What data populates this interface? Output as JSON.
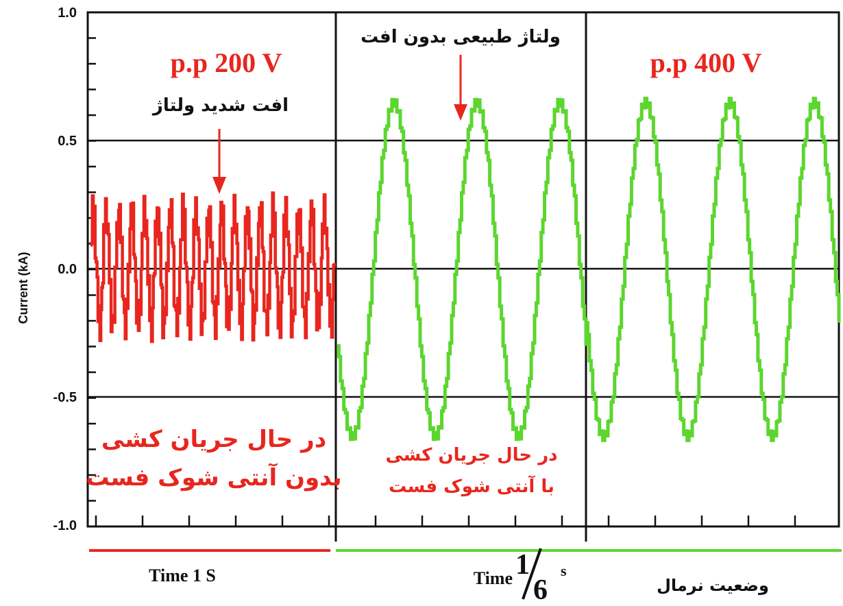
{
  "chart_data": {
    "type": "line",
    "ylabel": "Current (kA)",
    "ylim": [
      -1.0,
      1.0
    ],
    "yticks": [
      "1.0",
      "0.5",
      "0.0",
      "-0.5",
      "-1.0"
    ],
    "grid": true,
    "segments": [
      {
        "color": "#e8261e",
        "description_visible": "dense oscillation",
        "amplitude": 0.22,
        "cycles": 19
      },
      {
        "color": "#5cd62e",
        "amplitude": 0.65,
        "cycles": 3
      },
      {
        "color": "#5cd62e",
        "amplitude": 0.65,
        "cycles": 3
      }
    ],
    "annotations": {
      "pp200": "p.p 200 V",
      "severe_drop": "افت شدید ولتاژ",
      "normal_voltage": "ولتاژ طبیعی بدون افت",
      "pp400": "p.p 400 V",
      "red_bottom_line1": "در حال جریان کشی",
      "red_bottom_line2": "بدون آنتی شوک فست",
      "green_bottom_line1": "در حال جریان کشی",
      "green_bottom_line2": "با آنتی شوک فست"
    },
    "bottom": {
      "time1": "Time 1 S",
      "time_word": "Time",
      "frac_num": "1",
      "frac_den": "6",
      "frac_unit": "s",
      "normal_state": "وضعیت نرمال"
    }
  }
}
